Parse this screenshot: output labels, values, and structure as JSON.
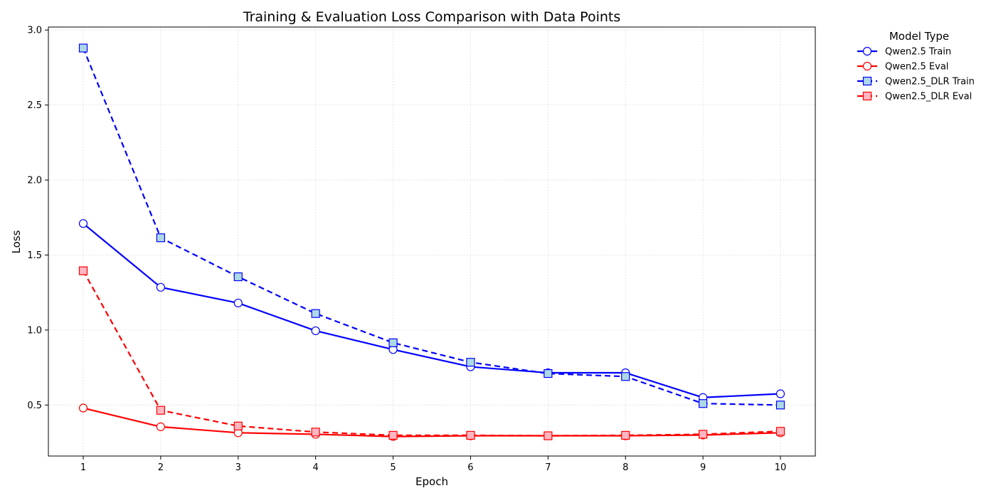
{
  "chart_data": {
    "type": "line",
    "title": "Training & Evaluation Loss Comparison with Data Points",
    "xlabel": "Epoch",
    "ylabel": "Loss",
    "x": [
      1,
      2,
      3,
      4,
      5,
      6,
      7,
      8,
      9,
      10
    ],
    "xlim": [
      0.55,
      10.45
    ],
    "ylim": [
      0.16,
      3.02
    ],
    "yticks": [
      "0.5",
      "1.0",
      "1.5",
      "2.0",
      "2.5",
      "3.0"
    ],
    "ytick_values": [
      0.5,
      1.0,
      1.5,
      2.0,
      2.5,
      3.0
    ],
    "grid": true,
    "legend": {
      "title": "Model Type",
      "placement": "outside-right"
    },
    "series": [
      {
        "name": "Qwen2.5 Train",
        "color": "#0000ff",
        "line": "solid",
        "marker": "circle",
        "marker_fill": "#ffffff",
        "values": [
          1.71,
          1.285,
          1.18,
          0.995,
          0.87,
          0.755,
          0.715,
          0.715,
          0.55,
          0.575
        ]
      },
      {
        "name": "Qwen2.5 Eval",
        "color": "#ff0000",
        "line": "solid",
        "marker": "circle",
        "marker_fill": "#ffffff",
        "values": [
          0.48,
          0.355,
          0.315,
          0.305,
          0.29,
          0.295,
          0.295,
          0.295,
          0.3,
          0.315
        ]
      },
      {
        "name": "Qwen2.5_DLR Train",
        "color": "#0000ff",
        "line": "dashed",
        "marker": "square",
        "marker_fill": "#add8e6",
        "values": [
          2.88,
          1.615,
          1.355,
          1.11,
          0.915,
          0.785,
          0.71,
          0.69,
          0.51,
          0.5
        ]
      },
      {
        "name": "Qwen2.5_DLR Eval",
        "color": "#ff0000",
        "line": "dashed",
        "marker": "square",
        "marker_fill": "#ffb6c1",
        "values": [
          1.395,
          0.465,
          0.36,
          0.32,
          0.298,
          0.298,
          0.295,
          0.298,
          0.305,
          0.325
        ]
      }
    ]
  }
}
